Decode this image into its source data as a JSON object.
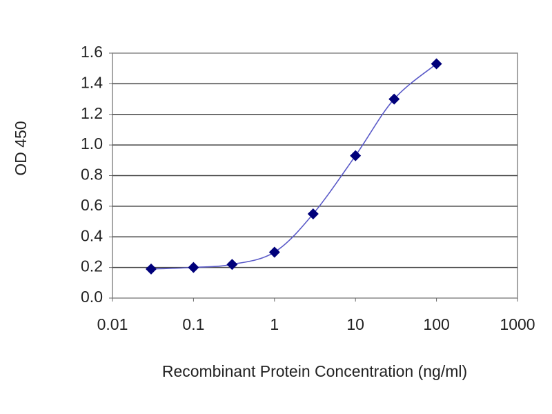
{
  "chart_data": {
    "type": "line",
    "x_label": "Recombinant Protein Concentration (ng/ml)",
    "y_label": "OD 450",
    "x": [
      0.03,
      0.1,
      0.3,
      1,
      3,
      10,
      30,
      100
    ],
    "series": [
      {
        "color": "#00007a",
        "line_color": "#5a5ac8",
        "values": [
          0.19,
          0.2,
          0.22,
          0.3,
          0.55,
          0.93,
          1.3,
          1.53
        ]
      }
    ],
    "xscale": "log",
    "xlim": [
      0.01,
      1000
    ],
    "xticks": [
      0.01,
      0.1,
      1,
      10,
      100,
      1000
    ],
    "ylim": [
      0,
      1.6
    ],
    "yticks": [
      {
        "value": 0,
        "label": "0.0"
      },
      0.2,
      0.4,
      0.6,
      0.8,
      {
        "value": 1,
        "label": "1.0"
      },
      1.2,
      1.4,
      1.6
    ],
    "grid": true
  }
}
